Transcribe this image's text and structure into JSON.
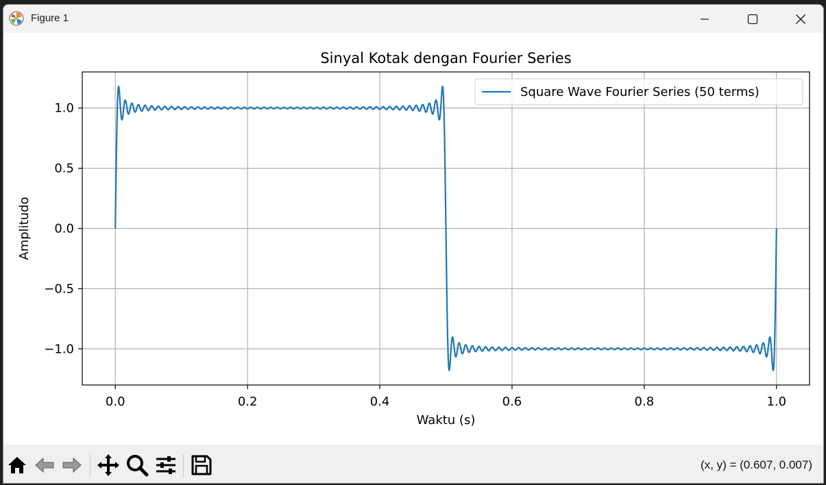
{
  "window": {
    "title": "Figure 1"
  },
  "icons": {
    "app": "matplotlib-logo-icon",
    "minimize": "minimize-icon",
    "maximize": "maximize-icon",
    "close": "close-icon",
    "home": "home-icon",
    "back": "back-arrow-icon",
    "forward": "forward-arrow-icon",
    "pan": "pan-icon",
    "zoom": "zoom-icon",
    "configure": "configure-subplots-icon",
    "save": "save-icon"
  },
  "toolbar": {
    "coords": "(x, y) = (0.607, 0.007)"
  },
  "colors": {
    "series": "#1f77b4",
    "grid": "#b0b0b0"
  },
  "chart_data": {
    "type": "line",
    "title": "Sinyal Kotak dengan Fourier Series",
    "xlabel": "Waktu (s)",
    "ylabel": "Amplitudo",
    "xlim": [
      -0.05,
      1.05
    ],
    "ylim": [
      -1.3,
      1.3
    ],
    "xticks": [
      0.0,
      0.2,
      0.4,
      0.6,
      0.8,
      1.0
    ],
    "xtick_labels": [
      "0.0",
      "0.2",
      "0.4",
      "0.6",
      "0.8",
      "1.0"
    ],
    "yticks": [
      1.0,
      0.5,
      0.0,
      -0.5,
      -1.0
    ],
    "ytick_labels": [
      "1.0",
      "0.5",
      "0.0",
      "−0.5",
      "−1.0"
    ],
    "grid": true,
    "legend_position": "upper right",
    "series": [
      {
        "name": "Square Wave Fourier Series (50 terms)",
        "function": "sum over n = 1, 3, 5, ..., 99 of (4/pi) * sin(2*pi*n*t)/n",
        "x_range": [
          0,
          1
        ],
        "terms": 50
      }
    ]
  }
}
